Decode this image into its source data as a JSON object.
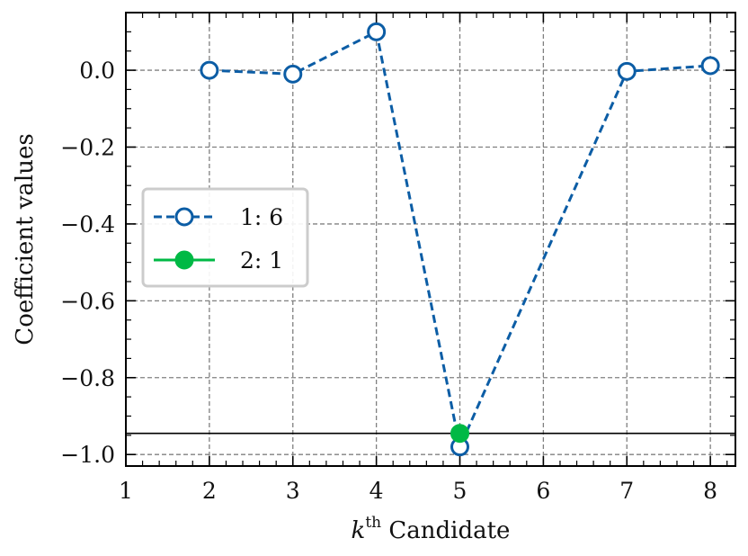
{
  "chart_data": {
    "type": "line",
    "xlabel_var": "k",
    "xlabel_sup": "th",
    "xlabel_text": "Candidate",
    "ylabel": "Coefficient values",
    "xlim": [
      1,
      8.3
    ],
    "ylim": [
      -1.03,
      0.15
    ],
    "x_ticks": [
      1,
      2,
      3,
      4,
      5,
      6,
      7,
      8
    ],
    "y_ticks": [
      0.0,
      -0.2,
      -0.4,
      -0.6,
      -0.8,
      -1.0
    ],
    "x_tick_labels": [
      "1",
      "2",
      "3",
      "4",
      "5",
      "6",
      "7",
      "8"
    ],
    "y_tick_labels": [
      "0.0",
      "−0.2",
      "−0.4",
      "−0.6",
      "−0.8",
      "−1.0"
    ],
    "grid": true,
    "legend_position": "center-left",
    "hline_y": -0.945,
    "series": [
      {
        "name": "1:  6",
        "style": "dashed-open-circle",
        "color": "#0C5DA5",
        "x": [
          2,
          3,
          4,
          5,
          7,
          8
        ],
        "y": [
          0.0,
          -0.01,
          0.1,
          -0.98,
          -0.003,
          0.012
        ]
      },
      {
        "name": "2:  1",
        "style": "solid-filled-circle",
        "color": "#00B945",
        "x": [
          5
        ],
        "y": [
          -0.945
        ]
      }
    ]
  }
}
